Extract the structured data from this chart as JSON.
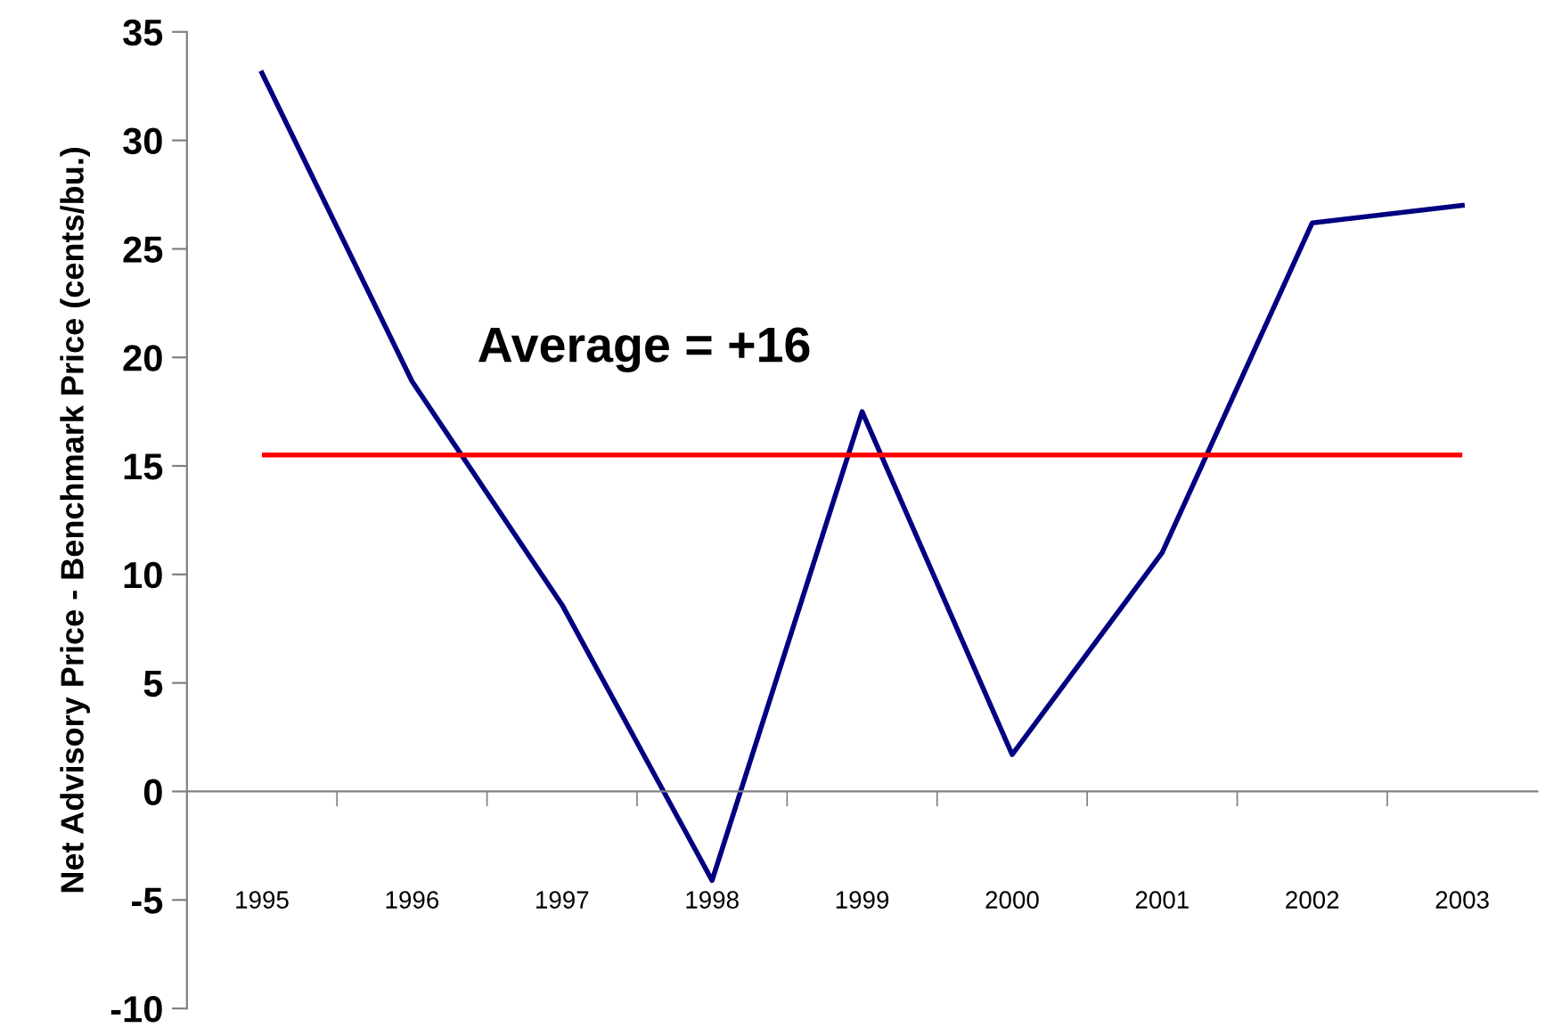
{
  "chart_data": {
    "type": "line",
    "ylabel": "Net Advisory Price - Benchmark Price (cents/bu.)",
    "categories": [
      "1995",
      "1996",
      "1997",
      "1998",
      "1999",
      "2000",
      "2001",
      "2002",
      "2003"
    ],
    "series": [
      {
        "color": "#000080",
        "values": [
          33.1,
          18.9,
          8.6,
          -4.1,
          17.5,
          1.7,
          11.0,
          26.2,
          27.0
        ]
      }
    ],
    "ylim": [
      -10,
      35
    ],
    "yticks": [
      -10,
      -5,
      0,
      5,
      10,
      15,
      20,
      25,
      30,
      35
    ],
    "ref_lines": [
      {
        "axis": "y",
        "value": 15.5,
        "color": "#ff0000"
      }
    ],
    "annotations": [
      "Average = +16"
    ],
    "legend": false,
    "marker": "none",
    "line_style": "solid"
  }
}
